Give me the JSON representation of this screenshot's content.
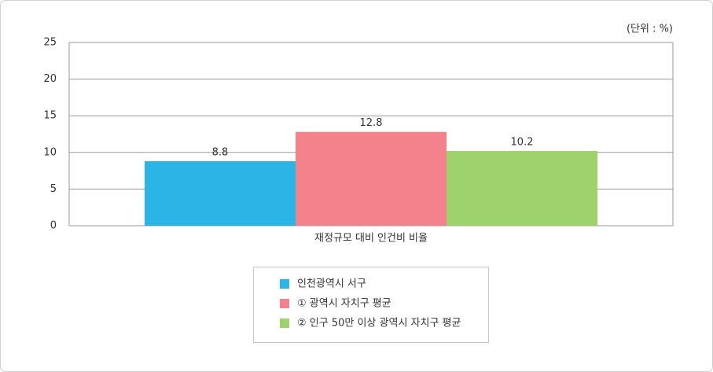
{
  "chart_data": {
    "type": "bar",
    "unit_label": "(단위 : %)",
    "categories": [
      "재정규모 대비 인건비 비율"
    ],
    "series": [
      {
        "name": "인천광역시 서구",
        "color": "#2bb5e6",
        "values": [
          8.8
        ]
      },
      {
        "name": "① 광역시 자치구 평균",
        "color": "#f4828c",
        "values": [
          12.8
        ]
      },
      {
        "name": "② 인구 50만 이상 광역시 자치구 평균",
        "color": "#9dd26c",
        "values": [
          10.2
        ]
      }
    ],
    "ylim": [
      0,
      25
    ],
    "yticks": [
      0,
      5,
      10,
      15,
      20,
      25
    ],
    "grid": true
  }
}
